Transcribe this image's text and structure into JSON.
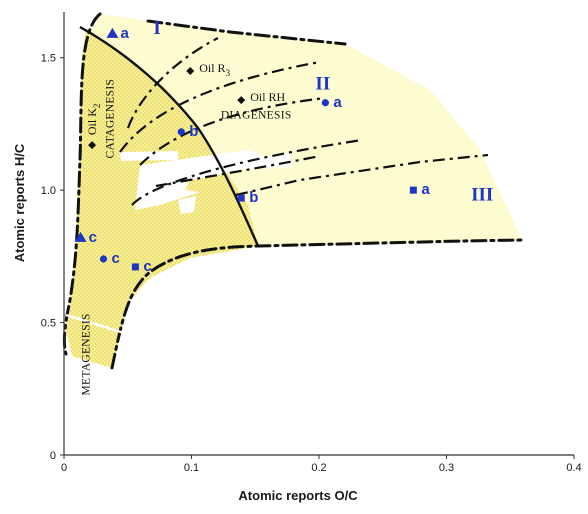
{
  "chart_data": {
    "type": "scatter",
    "xlabel": "Atomic reports O/C",
    "ylabel": "Atomic reports H/C",
    "xlim": [
      0,
      0.4
    ],
    "ylim": [
      0,
      1.65
    ],
    "x_ticks": [
      "0",
      "0.1",
      "0.2",
      "0.3",
      "0.4"
    ],
    "y_ticks": [
      "0",
      "0.5",
      "1.0",
      "1.5"
    ],
    "grid": false,
    "kerogen_types": [
      {
        "label": "I",
        "x": 0.073,
        "y": 1.59
      },
      {
        "label": "II",
        "x": 0.203,
        "y": 1.38
      },
      {
        "label": "III",
        "x": 0.328,
        "y": 0.96
      }
    ],
    "zone_labels": [
      {
        "text": "DIAGENESIS",
        "x": 0.123,
        "y": 1.27
      },
      {
        "text": "CATAGENESIS",
        "x": 0.039,
        "y": 1.27,
        "rotated": true
      },
      {
        "text": "METAGENESIS",
        "x": 0.02,
        "y": 0.38,
        "rotated": true
      }
    ],
    "oils": [
      {
        "name": "Oil R",
        "sub": "3",
        "x": 0.099,
        "y": 1.45
      },
      {
        "name": "Oil RH",
        "sub": "",
        "x": 0.139,
        "y": 1.34
      },
      {
        "name": "Oil K",
        "sub": "2",
        "x": 0.022,
        "y": 1.17
      }
    ],
    "points": [
      {
        "label": "a",
        "marker": "triangle",
        "x": 0.038,
        "y": 1.59
      },
      {
        "label": "a",
        "marker": "circle",
        "x": 0.205,
        "y": 1.33
      },
      {
        "label": "a",
        "marker": "square",
        "x": 0.274,
        "y": 1.0
      },
      {
        "label": "b",
        "marker": "circle",
        "x": 0.092,
        "y": 1.22
      },
      {
        "label": "b",
        "marker": "square",
        "x": 0.139,
        "y": 0.97
      },
      {
        "label": "c",
        "marker": "triangle",
        "x": 0.013,
        "y": 0.82
      },
      {
        "label": "c",
        "marker": "circle",
        "x": 0.031,
        "y": 0.74
      },
      {
        "label": "c",
        "marker": "square",
        "x": 0.056,
        "y": 0.71
      }
    ],
    "colors": {
      "marker": "#1f35c4",
      "fill_light": "#fdfbd0",
      "fill_dotted": "#f7ef95",
      "dots": "#d9c43c"
    }
  }
}
